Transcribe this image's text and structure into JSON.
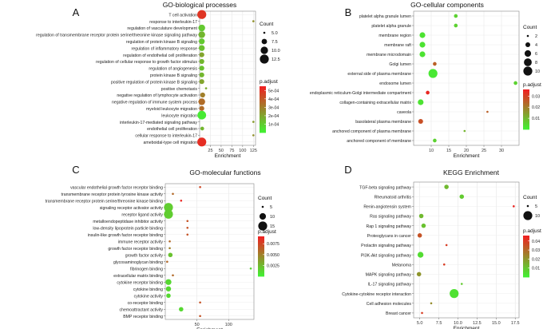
{
  "chart_data": [
    {
      "type": "scatter",
      "panel_label": "A",
      "title": "GO-biological processes",
      "xlabel": "Enrichment",
      "xlim": [
        0,
        130
      ],
      "xticks": [
        25,
        50,
        75,
        100,
        125
      ],
      "categories": [
        "T cell activation",
        "response to interleukin-17",
        "regulation of vasculature development",
        "regulation of transmembrane receptor protein serine/threonine kinase signaling pathway",
        "regulation of protein kinase B signaling",
        "regulation of inflammatory response",
        "regulation of endothelial cell proliferation",
        "regulation of cellular response to growth factor stimulus",
        "regulation of angiogenesis",
        "protein kinase B signaling",
        "positive regulation of protein kinase B signaling",
        "positive chemotaxis",
        "negative regulation of lymphocyte activation",
        "negative regulation of immune system process",
        "myeloid leukocyte migration",
        "leukocyte migration",
        "interleukin-17-mediated signaling pathway",
        "endothelial cell proliferation",
        "cellular response to interleukin-17",
        "ameboidal-type cell migration"
      ],
      "x": [
        5,
        125,
        5,
        5,
        5,
        5,
        5,
        5,
        5,
        5,
        5,
        15,
        7,
        5,
        5,
        5,
        125,
        6,
        125,
        5
      ],
      "count": [
        12.5,
        2.5,
        9,
        9,
        8,
        8,
        7,
        7,
        7,
        7,
        7,
        5,
        7,
        9,
        7,
        12,
        2.5,
        6,
        2.5,
        12.5
      ],
      "padj": [
        0.0005,
        0.00025,
        0.0001,
        0.00015,
        0.0001,
        0.00012,
        0.0002,
        0.00015,
        0.00012,
        0.00015,
        0.0002,
        0.00018,
        0.0003,
        0.00035,
        0.00035,
        1e-05,
        0.00022,
        0.00015,
        0.00025,
        0.00052
      ],
      "size_legend": {
        "title": "Count",
        "values": [
          5.0,
          7.5,
          10.0,
          12.5
        ],
        "labels": [
          "5.0",
          "7.5",
          "10.0",
          "12.5"
        ]
      },
      "color_legend": {
        "title": "p.adjust",
        "range": [
          0,
          0.00055
        ],
        "ticks": [
          0.0001,
          0.0002,
          0.0003,
          0.0004,
          0.0005
        ],
        "labels": [
          "1e-04",
          "2e-04",
          "3e-04",
          "4e-04",
          "5e-04"
        ],
        "low_color": "#44ee33",
        "high_color": "#ee2222"
      }
    },
    {
      "type": "scatter",
      "panel_label": "B",
      "title": "GO-cellular components",
      "xlabel": "Enrichment",
      "xlim": [
        5,
        35
      ],
      "xticks": [
        10,
        15,
        20,
        25,
        30
      ],
      "categories": [
        "platelet alpha granule lumen",
        "platelet alpha granule",
        "membrane region",
        "membrane raft",
        "membrane microdomain",
        "Golgi lumen",
        "external side of plasma membrane",
        "endosome lumen",
        "endoplasmic reticulum-Golgi intermediate compartment",
        "collagen-containing extracellular matrix",
        "caveola",
        "basolateral plasma membrane",
        "anchored component of plasma membrane",
        "anchored component of membrane"
      ],
      "x": [
        17,
        17,
        7.5,
        7.5,
        7.5,
        11,
        10.5,
        34,
        9,
        7,
        26,
        7,
        19.5,
        11
      ],
      "count": [
        3,
        3,
        5,
        5,
        5,
        3,
        10,
        3,
        3,
        5,
        2,
        4,
        2,
        3
      ],
      "padj": [
        0.005,
        0.005,
        0.002,
        0.002,
        0.002,
        0.025,
        0.001,
        0.005,
        0.035,
        0.002,
        0.025,
        0.028,
        0.01,
        0.005
      ],
      "size_legend": {
        "title": "Count",
        "values": [
          2,
          4,
          6,
          8,
          10
        ],
        "labels": [
          "2",
          "4",
          "6",
          "8",
          "10"
        ]
      },
      "color_legend": {
        "title": "p.adjust",
        "range": [
          0,
          0.036
        ],
        "ticks": [
          0.01,
          0.02,
          0.03
        ],
        "labels": [
          "0.01",
          "0.02",
          "0.03"
        ],
        "low_color": "#44ee33",
        "high_color": "#ee2222"
      }
    },
    {
      "type": "scatter",
      "panel_label": "C",
      "title": "GO-molecular functions",
      "xlabel": "Enrichment",
      "xlim": [
        0,
        140
      ],
      "xticks": [
        50,
        100
      ],
      "categories": [
        "vascular endothelial growth factor receptor binding",
        "transmembrane receptor protein tyrosine kinase activity",
        "transmembrane receptor protein serine/threonine kinase binding",
        "signaling receptor activator activity",
        "receptor ligand activity",
        "metalloendopeptidase inhibitor activity",
        "low-density lipoprotein particle binding",
        "insulin-like growth factor receptor binding",
        "immune receptor activity",
        "growth factor receptor binding",
        "growth factor activity",
        "glycosaminoglycan binding",
        "fibrinogen binding",
        "extracellular matrix binding",
        "cytokine receptor binding",
        "cytokine binding",
        "cytokine activity",
        "co-receptor binding",
        "chemoattractant activity",
        "BMP receptor binding"
      ],
      "x": [
        55,
        12,
        25,
        5,
        5,
        35,
        35,
        35,
        7,
        7,
        8,
        3,
        135,
        12,
        5,
        5,
        5,
        55,
        25,
        55
      ],
      "count": [
        2,
        3,
        2,
        16,
        16,
        2,
        2,
        2,
        4,
        4,
        7,
        5,
        2,
        3,
        9,
        8,
        7,
        2,
        7,
        2
      ],
      "padj": [
        0.0075,
        0.006,
        0.009,
        0.0015,
        0.0015,
        0.007,
        0.007,
        0.007,
        0.006,
        0.005,
        0.002,
        0.006,
        0.001,
        0.006,
        0.001,
        0.001,
        0.001,
        0.007,
        0.001,
        0.007
      ],
      "size_legend": {
        "title": "Count",
        "values": [
          5,
          10,
          15
        ],
        "labels": [
          "5",
          "10",
          "15"
        ]
      },
      "color_legend": {
        "title": "p.adjust",
        "range": [
          0,
          0.0092
        ],
        "ticks": [
          0.0025,
          0.005,
          0.0075
        ],
        "labels": [
          "0.0025",
          "0.0050",
          "0.0075"
        ],
        "low_color": "#44ee33",
        "high_color": "#ee2222"
      }
    },
    {
      "type": "scatter",
      "panel_label": "D",
      "title": "KEGG Enrichment",
      "xlabel": "Enrichment",
      "xlim": [
        4.2,
        18
      ],
      "xticks": [
        5.0,
        7.5,
        10.0,
        12.5,
        15.0,
        17.5
      ],
      "xtick_labels": [
        "5.0",
        "7.5",
        "10.0",
        "12.5",
        "15.0",
        "17.5"
      ],
      "categories": [
        "TGF-beta signaling pathway",
        "Rheumatoid arthritis",
        "Renin-angiotensin system",
        "Ras signaling pathway",
        "Rap 1 signaling pathway",
        "Proteoglycans in cancer",
        "Prolactin signaling pathway",
        "PI3K-Akt signaling pathway",
        "Melanoma",
        "MAPK signaling pathway",
        "IL-17 signaling pathway",
        "Cytokine-cytokine receptor interaction",
        "Cell adhesion molecules",
        "Breast cancer"
      ],
      "x": [
        8.5,
        10.5,
        17.3,
        5.2,
        5.5,
        5.0,
        8.5,
        5.1,
        8.2,
        4.9,
        10.5,
        9.5,
        6.5,
        5.3
      ],
      "count": [
        6,
        6,
        2,
        6,
        6,
        6,
        4,
        7,
        4,
        6,
        5,
        11,
        5,
        5
      ],
      "padj": [
        0.012,
        0.008,
        0.045,
        0.012,
        0.01,
        0.035,
        0.04,
        0.004,
        0.04,
        0.02,
        0.008,
        0.003,
        0.022,
        0.04
      ],
      "size_legend": {
        "title": "Count",
        "values": [
          5,
          10
        ],
        "labels": [
          "5",
          "10"
        ]
      },
      "color_legend": {
        "title": "p.adjust",
        "range": [
          0,
          0.046
        ],
        "ticks": [
          0.01,
          0.02,
          0.03,
          0.04
        ],
        "labels": [
          "0.01",
          "0.02",
          "0.03",
          "0.04"
        ],
        "low_color": "#44ee33",
        "high_color": "#ee2222"
      }
    }
  ]
}
